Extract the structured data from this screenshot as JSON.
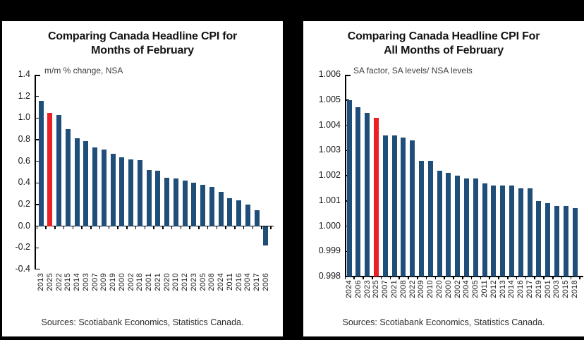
{
  "panels": [
    {
      "title_line1": "Comparing Canada Headline CPI for",
      "title_line2": "Months of February",
      "subtitle": "m/m % change, NSA",
      "source": "Sources: Scotiabank Economics, Statistics Canada."
    },
    {
      "title_line1": "Comparing Canada Headline CPI For",
      "title_line2": "All Months of February",
      "subtitle": "SA factor, SA levels/ NSA levels",
      "source": "Sources: Scotiabank Economics, Statistics Canada."
    }
  ],
  "chart_data": [
    {
      "type": "bar",
      "title": "Comparing Canada Headline CPI for Months of February",
      "subtitle": "m/m % change, NSA",
      "categories": [
        "2013",
        "2025",
        "2022",
        "2015",
        "2014",
        "2003",
        "2007",
        "2009",
        "2019",
        "2000",
        "2002",
        "2018",
        "2001",
        "2021",
        "2020",
        "2010",
        "2012",
        "2023",
        "2005",
        "2008",
        "2024",
        "2011",
        "2016",
        "2004",
        "2017",
        "2006"
      ],
      "values": [
        1.16,
        1.05,
        1.03,
        0.9,
        0.81,
        0.79,
        0.73,
        0.71,
        0.67,
        0.64,
        0.62,
        0.61,
        0.52,
        0.51,
        0.45,
        0.44,
        0.42,
        0.4,
        0.38,
        0.36,
        0.32,
        0.26,
        0.24,
        0.2,
        0.15,
        -0.18
      ],
      "highlight_category": "2025",
      "bar_color": "#1F4E79",
      "highlight_color": "#EC1F27",
      "ylim": [
        -0.4,
        1.4
      ],
      "ytick_step": 0.2,
      "ytick_decimals": 1,
      "baseline": 0.0,
      "axis_line_at": 0.0,
      "grid": false,
      "legend": "none",
      "xlabel": "",
      "ylabel": "m/m % change, NSA"
    },
    {
      "type": "bar",
      "title": "Comparing Canada Headline CPI For All Months of February",
      "subtitle": "SA factor, SA levels/ NSA levels",
      "categories": [
        "2024",
        "2006",
        "2023",
        "2025",
        "2007",
        "2021",
        "2008",
        "2022",
        "2009",
        "2010",
        "2020",
        "2000",
        "2002",
        "2004",
        "2005",
        "2011",
        "2012",
        "2013",
        "2014",
        "2016",
        "2017",
        "2019",
        "2001",
        "2003",
        "2015",
        "2018"
      ],
      "values": [
        1.005,
        1.0047,
        1.0045,
        1.0043,
        1.0036,
        1.0036,
        1.0035,
        1.0034,
        1.0026,
        1.0026,
        1.0022,
        1.0021,
        1.002,
        1.0019,
        1.0019,
        1.0017,
        1.0016,
        1.0016,
        1.0016,
        1.0015,
        1.0015,
        1.001,
        1.0009,
        1.0008,
        1.0008,
        1.0007
      ],
      "highlight_category": "2025",
      "bar_color": "#1F4E79",
      "highlight_color": "#EC1F27",
      "ylim": [
        0.998,
        1.006
      ],
      "ytick_step": 0.001,
      "ytick_decimals": 3,
      "baseline": 0.998,
      "axis_line_at": 0.998,
      "grid": false,
      "legend": "none",
      "xlabel": "",
      "ylabel": "SA factor, SA levels/ NSA levels"
    }
  ]
}
